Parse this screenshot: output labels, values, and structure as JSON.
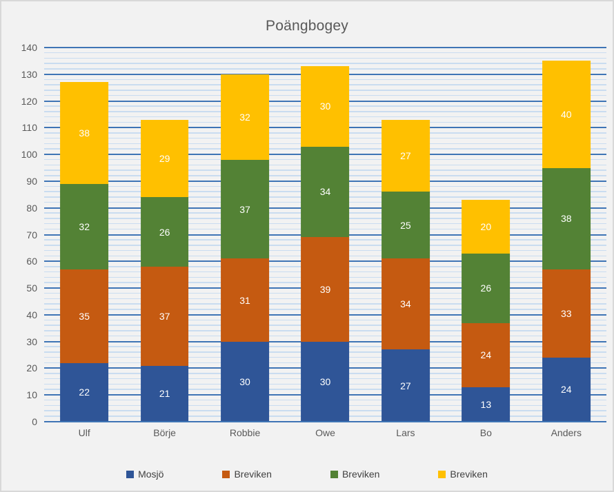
{
  "chart_data": {
    "type": "bar",
    "stacked": true,
    "title": "Poängbogey",
    "categories": [
      "Ulf",
      "Börje",
      "Robbie",
      "Owe",
      "Lars",
      "Bo",
      "Anders"
    ],
    "series": [
      {
        "name": "Mosjö",
        "color": "#2F5597",
        "values": [
          22,
          21,
          30,
          30,
          27,
          13,
          24
        ]
      },
      {
        "name": "Breviken",
        "color": "#C55A11",
        "values": [
          35,
          37,
          31,
          39,
          34,
          24,
          33
        ]
      },
      {
        "name": "Breviken",
        "color": "#538235",
        "values": [
          32,
          26,
          37,
          34,
          25,
          26,
          38
        ]
      },
      {
        "name": "Breviken",
        "color": "#FFC000",
        "values": [
          38,
          29,
          32,
          30,
          27,
          20,
          40
        ]
      }
    ],
    "totals": [
      127,
      113,
      130,
      133,
      113,
      83,
      135
    ],
    "ylim": [
      0,
      140
    ],
    "y_major_unit": 10,
    "y_minor_unit": 2,
    "y_tick_labels": [
      "0",
      "10",
      "20",
      "30",
      "40",
      "50",
      "60",
      "70",
      "80",
      "90",
      "100",
      "110",
      "120",
      "130",
      "140"
    ],
    "data_labels_shown": true,
    "legend_position": "bottom",
    "grid": true,
    "xlabel": "",
    "ylabel": ""
  },
  "style_colors": {
    "background": "#F2F2F2",
    "frame_border": "#D8D8D8",
    "gridline_major": "#3E74B5",
    "gridline_minor": "#C9DCF0",
    "axis_text": "#595959",
    "title_text": "#595959",
    "legend_text": "#404040",
    "data_label_text": "#FFFFFF"
  }
}
